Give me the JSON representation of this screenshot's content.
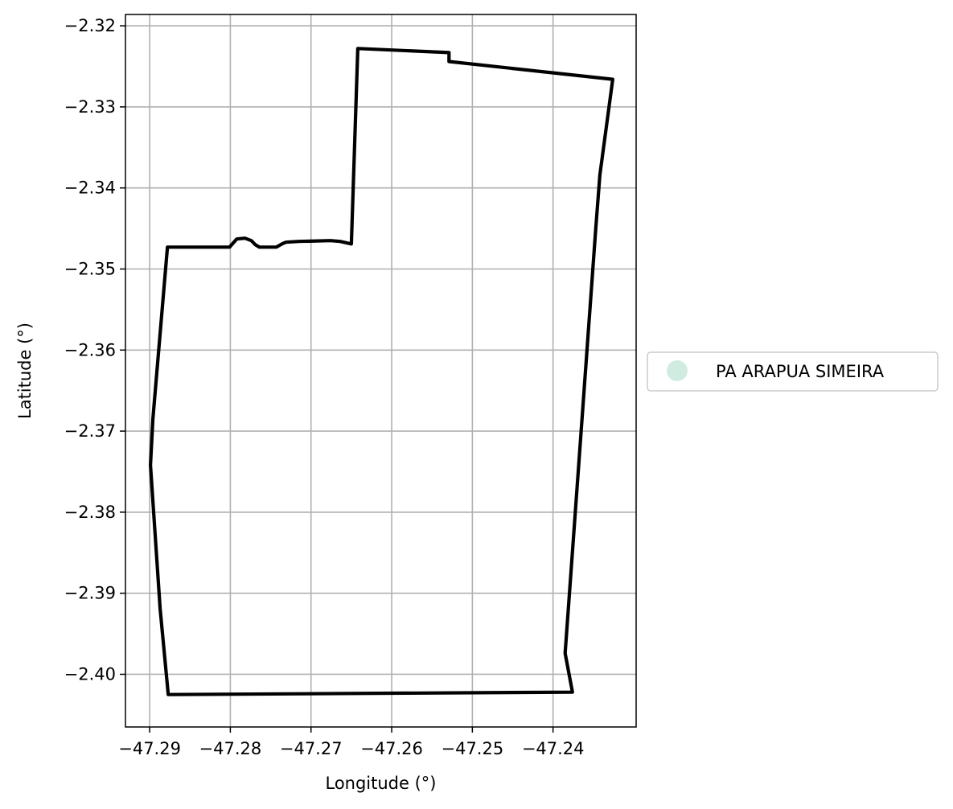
{
  "map": {
    "xlabel": "Longitude (°)",
    "ylabel": "Latitude (°)",
    "xlim": [
      -47.293,
      -47.2297
    ],
    "ylim": [
      -2.4065,
      -2.3186
    ],
    "x_ticks": [
      -47.29,
      -47.28,
      -47.27,
      -47.26,
      -47.25,
      -47.24
    ],
    "x_tick_labels": [
      "−47.29",
      "−47.28",
      "−47.27",
      "−47.26",
      "−47.25",
      "−47.24"
    ],
    "y_ticks": [
      -2.32,
      -2.33,
      -2.34,
      -2.35,
      -2.36,
      -2.37,
      -2.38,
      -2.39,
      -2.4
    ],
    "y_tick_labels": [
      "−2.32",
      "−2.33",
      "−2.34",
      "−2.35",
      "−2.36",
      "−2.37",
      "−2.38",
      "−2.39",
      "−2.40"
    ],
    "grid": true,
    "legend": {
      "position": "outside-right",
      "entries": [
        {
          "label": "PA ARAPUA SIMEIRA",
          "color": "#d0ece0"
        }
      ]
    },
    "boundary": {
      "name": "PA ARAPUA SIMEIRA",
      "color": "#000000",
      "points": [
        [
          -47.2642,
          -2.3228
        ],
        [
          -47.2529,
          -2.3233
        ],
        [
          -47.2529,
          -2.3244
        ],
        [
          -47.2326,
          -2.3266
        ],
        [
          -47.2342,
          -2.3384
        ],
        [
          -47.2347,
          -2.345
        ],
        [
          -47.2385,
          -2.3974
        ],
        [
          -47.2376,
          -2.4022
        ],
        [
          -47.2877,
          -2.4025
        ],
        [
          -47.2887,
          -2.3919
        ],
        [
          -47.2899,
          -2.3742
        ],
        [
          -47.2896,
          -2.3685
        ],
        [
          -47.2878,
          -2.3473
        ],
        [
          -47.2801,
          -2.3473
        ],
        [
          -47.2792,
          -2.3463
        ],
        [
          -47.2782,
          -2.3462
        ],
        [
          -47.2774,
          -2.3465
        ],
        [
          -47.2769,
          -2.347
        ],
        [
          -47.2764,
          -2.3473
        ],
        [
          -47.2743,
          -2.3473
        ],
        [
          -47.2736,
          -2.3469
        ],
        [
          -47.2731,
          -2.3467
        ],
        [
          -47.2715,
          -2.3466
        ],
        [
          -47.2676,
          -2.3465
        ],
        [
          -47.2664,
          -2.3466
        ],
        [
          -47.265,
          -2.3469
        ],
        [
          -47.2642,
          -2.3228
        ]
      ]
    }
  }
}
